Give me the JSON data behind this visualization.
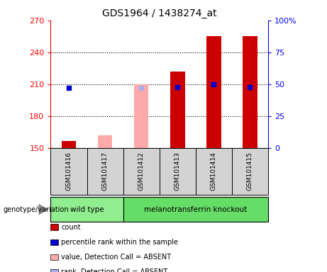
{
  "title": "GDS1964 / 1438274_at",
  "samples": [
    "GSM101416",
    "GSM101417",
    "GSM101412",
    "GSM101413",
    "GSM101414",
    "GSM101415"
  ],
  "genotype_groups": [
    {
      "label": "wild type",
      "samples": [
        "GSM101416",
        "GSM101417"
      ],
      "color": "#90ee90"
    },
    {
      "label": "melanotransferrin knockout",
      "samples": [
        "GSM101412",
        "GSM101413",
        "GSM101414",
        "GSM101415"
      ],
      "color": "#66dd66"
    }
  ],
  "ylim_left": [
    150,
    270
  ],
  "yticks_left": [
    150,
    180,
    210,
    240,
    270
  ],
  "yticks_right": [
    0,
    25,
    50,
    75,
    100
  ],
  "ytick_labels_right": [
    "0",
    "25",
    "50",
    "75",
    "100%"
  ],
  "baseline": 150,
  "data": {
    "GSM101416": {
      "count": 157,
      "percentile_rank": 47,
      "absent": false,
      "absent_value": null,
      "absent_rank": null
    },
    "GSM101417": {
      "count": null,
      "percentile_rank": null,
      "absent": true,
      "absent_value": 162,
      "absent_rank": null
    },
    "GSM101412": {
      "count": null,
      "percentile_rank": null,
      "absent": true,
      "absent_value": 210,
      "absent_rank": 47
    },
    "GSM101413": {
      "count": 222,
      "percentile_rank": 48,
      "absent": false,
      "absent_value": null,
      "absent_rank": null
    },
    "GSM101414": {
      "count": 255,
      "percentile_rank": 50,
      "absent": false,
      "absent_value": null,
      "absent_rank": null
    },
    "GSM101415": {
      "count": 255,
      "percentile_rank": 48,
      "absent": false,
      "absent_value": null,
      "absent_rank": null
    }
  },
  "bar_width": 0.4,
  "bar_color_count": "#cc0000",
  "bar_color_absent_value": "#ffaaaa",
  "dot_color_percentile": "#0000cc",
  "dot_color_absent_rank": "#aaaaee",
  "legend_items": [
    {
      "color": "#cc0000",
      "label": "count"
    },
    {
      "color": "#0000cc",
      "label": "percentile rank within the sample"
    },
    {
      "color": "#ffaaaa",
      "label": "value, Detection Call = ABSENT"
    },
    {
      "color": "#aaaaee",
      "label": "rank, Detection Call = ABSENT"
    }
  ]
}
